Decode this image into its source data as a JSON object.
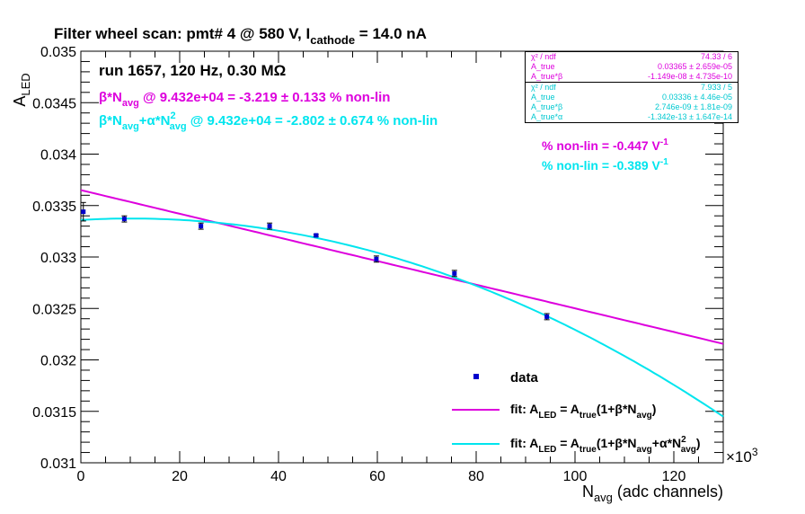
{
  "chart_data": {
    "type": "scatter",
    "title": "Filter wheel scan: pmt#   4 @   580 V, I",
    "title_sub": "cathode",
    "title_tail": " = 14.0 nA",
    "xlabel": "N",
    "xlabel_sub": "avg",
    "xlabel_tail": " (adc channels)",
    "ylabel": "A",
    "ylabel_sub": "LED",
    "x_multiplier": "×10",
    "x_multiplier_exp": "3",
    "xlim": [
      0,
      130
    ],
    "ylim": [
      0.031,
      0.035
    ],
    "x_ticks": [
      0,
      20,
      40,
      60,
      80,
      100,
      120
    ],
    "x_tick_labels": [
      "0",
      "20",
      "40",
      "60",
      "80",
      "100",
      "120"
    ],
    "y_ticks": [
      0.031,
      0.0315,
      0.032,
      0.0325,
      0.033,
      0.0335,
      0.034,
      0.0345,
      0.035
    ],
    "y_tick_labels": [
      "0.031",
      "0.0315",
      "0.032",
      "0.0325",
      "0.033",
      "0.0335",
      "0.034",
      "0.0345",
      "0.035"
    ],
    "data_points": {
      "x": [
        0.5,
        8.8,
        24.3,
        38.2,
        47.6,
        59.8,
        75.6,
        94.3
      ],
      "y": [
        0.03344,
        0.03337,
        0.0333,
        0.0333,
        0.03321,
        0.03298,
        0.03284,
        0.03242
      ],
      "yerr": [
        9e-05,
        3e-05,
        3e-05,
        3e-05,
        1e-05,
        3e-05,
        3e-05,
        3e-05
      ],
      "color": "#0000cc"
    },
    "fit_linear": {
      "A_true": 0.03365,
      "beta": -1.149e-08,
      "color": "#dd00dd"
    },
    "fit_quad": {
      "A_true": 0.03336,
      "beta": 2.746e-09,
      "alpha": -1.342e-13,
      "color": "#00e5ee"
    },
    "annotations": {
      "run": "run 1657, 120 Hz, 0.30 MΩ",
      "nonlin_beta": "β*N@ 9.432e+04 = -3.219 ± 0.133 % non-lin",
      "nonlin_beta_pre": "β*N",
      "nonlin_beta_sub": "avg",
      "nonlin_beta_rest": " @ 9.432e+04 = -3.219 ± 0.133 % non-lin",
      "nonlin_quad_a": "β*N",
      "nonlin_quad_sub1": "avg",
      "nonlin_quad_b": "+α*N",
      "nonlin_quad_sup": "2",
      "nonlin_quad_sub2": "avg",
      "nonlin_quad_c": " @ 9.432e+04 = -2.802 ± 0.674 % non-lin",
      "pct_lin": "% non-lin = -0.447 V",
      "pct_quad": "% non-lin = -0.389 V",
      "pct_exp": "-1"
    },
    "legend": {
      "data": "data",
      "fit1": "fit: A",
      "fit1_sub1": "LED",
      "fit1_mid": " = A",
      "fit1_sub2": "true",
      "fit1_a": "(1+β*N",
      "fit1_sub3": "avg",
      "fit1_end": ")",
      "fit2": "fit: A",
      "fit2_sub1": "LED",
      "fit2_mid": " = A",
      "fit2_sub2": "true",
      "fit2_a": "(1+β*N",
      "fit2_sub3": "avg",
      "fit2_b": "+α*N",
      "fit2_sup": "2",
      "fit2_sub4": "avg",
      "fit2_end": ")"
    },
    "stats_box_1": [
      {
        "label": "χ² / ndf",
        "value": "74.33 / 6"
      },
      {
        "label": "A_true",
        "value": "0.03365 ± 2.659e-05"
      },
      {
        "label": "A_true*β",
        "value": "-1.149e-08 ± 4.735e-10"
      }
    ],
    "stats_box_2": [
      {
        "label": "χ² / ndf",
        "value": "7.933 / 5"
      },
      {
        "label": "A_true",
        "value": "0.03336 ± 4.46e-05"
      },
      {
        "label": "A_true*β",
        "value": "2.746e-09 ± 1.81e-09"
      },
      {
        "label": "A_true*α",
        "value": "-1.342e-13 ± 1.647e-14"
      }
    ]
  }
}
